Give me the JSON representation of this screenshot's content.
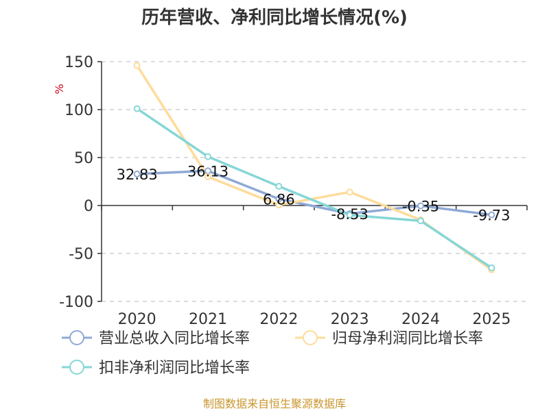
{
  "chart_data": {
    "type": "line",
    "title": "历年营收、净利同比增长情况(%)",
    "ylabel": "%",
    "categories": [
      "2020",
      "2021",
      "2022",
      "2023",
      "2024",
      "2025"
    ],
    "ylim": [
      -100,
      150
    ],
    "yticks": [
      150,
      100,
      50,
      0,
      -50,
      -100
    ],
    "grid": true,
    "legend_position": "bottom",
    "series": [
      {
        "name": "营业总收入同比增长率",
        "color": "#8fa9d6",
        "values": [
          32.83,
          36.13,
          6.86,
          -8.53,
          -0.35,
          -9.73
        ],
        "labels": [
          "32.83",
          "36.13",
          "6.86",
          "-8.53",
          "-0.35",
          "-9.73"
        ]
      },
      {
        "name": "归母净利润同比增长率",
        "color": "#fddc9a",
        "values": [
          146,
          30,
          0.5,
          14,
          -15,
          -67
        ]
      },
      {
        "name": "扣非净利润同比增长率",
        "color": "#86d6d6",
        "values": [
          101,
          51,
          20,
          -10,
          -16,
          -65
        ]
      }
    ]
  },
  "source": "制图数据来自恒生聚源数据库"
}
